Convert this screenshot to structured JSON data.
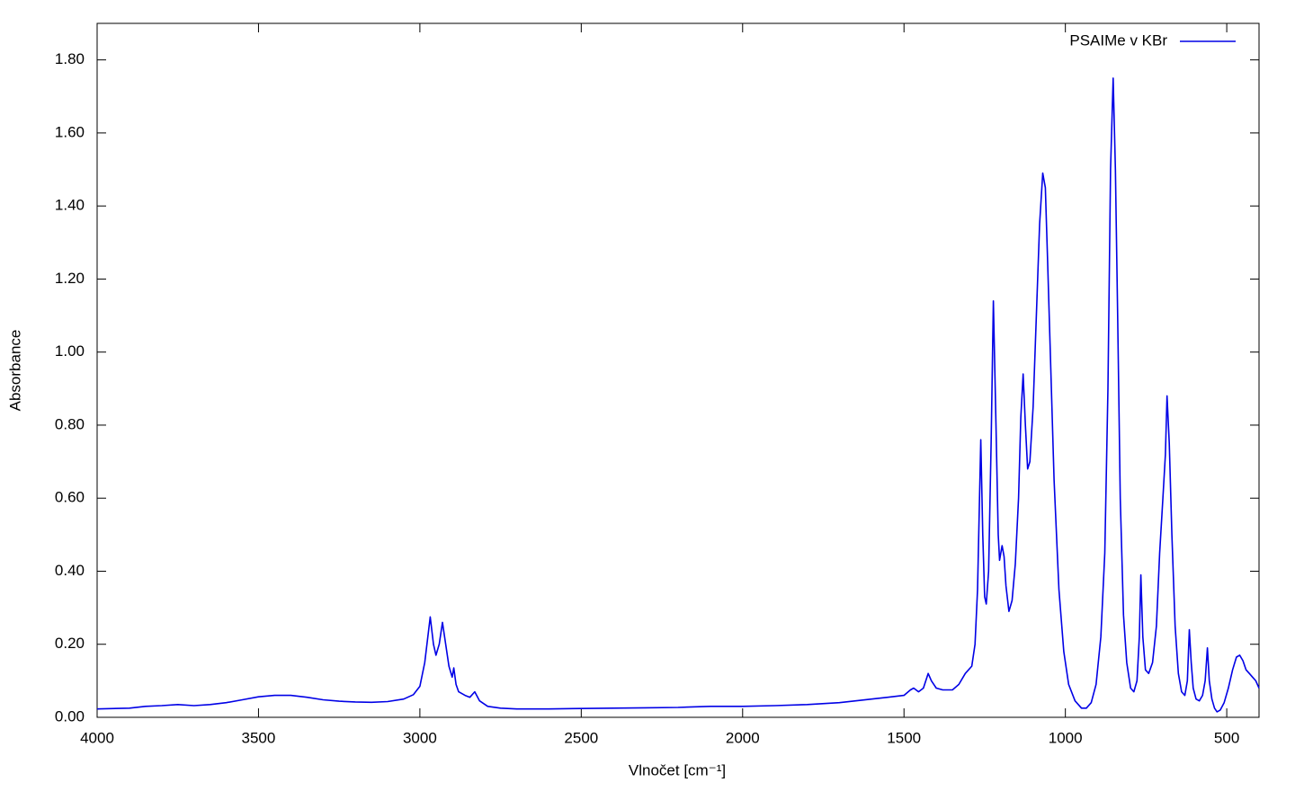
{
  "chart_data": {
    "type": "line",
    "x_label": "Vlnočet [cm⁻¹]",
    "y_label": "Absorbance",
    "xlim": [
      4000,
      400
    ],
    "ylim": [
      0,
      1.9
    ],
    "xticks": [
      4000,
      3500,
      3000,
      2500,
      2000,
      1500,
      1000,
      500
    ],
    "yticks": [
      {
        "value": 0,
        "label": "0.00"
      },
      {
        "value": 0.2,
        "label": "0.20"
      },
      {
        "value": 0.4,
        "label": "0.40"
      },
      {
        "value": 0.6,
        "label": "0.60"
      },
      {
        "value": 0.8,
        "label": "0.80"
      },
      {
        "value": 1.0,
        "label": "1.00"
      },
      {
        "value": 1.2,
        "label": "1.20"
      },
      {
        "value": 1.4,
        "label": "1.40"
      },
      {
        "value": 1.6,
        "label": "1.60"
      },
      {
        "value": 1.8,
        "label": "1.80"
      }
    ],
    "grid": false,
    "legend": "upper right",
    "x": [
      4000,
      3900,
      3850,
      3800,
      3750,
      3700,
      3650,
      3600,
      3550,
      3500,
      3450,
      3400,
      3350,
      3300,
      3250,
      3200,
      3150,
      3100,
      3050,
      3020,
      3000,
      2985,
      2968,
      2958,
      2950,
      2940,
      2930,
      2920,
      2910,
      2900,
      2895,
      2888,
      2880,
      2860,
      2845,
      2830,
      2815,
      2790,
      2750,
      2700,
      2600,
      2500,
      2400,
      2300,
      2200,
      2100,
      2000,
      1900,
      1800,
      1700,
      1650,
      1600,
      1550,
      1500,
      1480,
      1470,
      1455,
      1440,
      1425,
      1415,
      1400,
      1380,
      1350,
      1330,
      1310,
      1290,
      1280,
      1272,
      1266,
      1262,
      1256,
      1250,
      1245,
      1238,
      1230,
      1223,
      1215,
      1208,
      1204,
      1196,
      1190,
      1184,
      1175,
      1165,
      1155,
      1145,
      1138,
      1131,
      1124,
      1117,
      1110,
      1100,
      1090,
      1080,
      1070,
      1062,
      1055,
      1045,
      1035,
      1020,
      1005,
      990,
      970,
      950,
      935,
      920,
      905,
      890,
      878,
      868,
      860,
      852,
      845,
      838,
      830,
      820,
      810,
      798,
      788,
      778,
      771,
      766,
      760,
      752,
      742,
      730,
      718,
      708,
      698,
      690,
      685,
      678,
      670,
      660,
      650,
      640,
      630,
      622,
      616,
      610,
      604,
      595,
      585,
      575,
      567,
      560,
      554,
      546,
      538,
      530,
      520,
      508,
      495,
      482,
      470,
      460,
      450,
      440,
      430,
      420,
      410,
      400
    ],
    "series": [
      {
        "name": "PSAIMe v KBr",
        "color": "#0000e6",
        "values": [
          0.023,
          0.025,
          0.03,
          0.032,
          0.035,
          0.032,
          0.035,
          0.04,
          0.048,
          0.056,
          0.06,
          0.06,
          0.055,
          0.048,
          0.044,
          0.042,
          0.041,
          0.043,
          0.05,
          0.062,
          0.085,
          0.15,
          0.275,
          0.2,
          0.17,
          0.2,
          0.26,
          0.2,
          0.14,
          0.11,
          0.135,
          0.09,
          0.07,
          0.06,
          0.055,
          0.07,
          0.045,
          0.03,
          0.025,
          0.023,
          0.023,
          0.024,
          0.025,
          0.026,
          0.027,
          0.03,
          0.03,
          0.032,
          0.035,
          0.04,
          0.045,
          0.05,
          0.055,
          0.06,
          0.075,
          0.08,
          0.07,
          0.08,
          0.12,
          0.1,
          0.08,
          0.075,
          0.075,
          0.09,
          0.12,
          0.14,
          0.2,
          0.35,
          0.6,
          0.76,
          0.5,
          0.33,
          0.31,
          0.4,
          0.75,
          1.14,
          0.8,
          0.5,
          0.43,
          0.47,
          0.44,
          0.36,
          0.29,
          0.32,
          0.42,
          0.6,
          0.82,
          0.94,
          0.8,
          0.68,
          0.7,
          0.85,
          1.1,
          1.35,
          1.49,
          1.45,
          1.25,
          0.95,
          0.65,
          0.35,
          0.18,
          0.09,
          0.045,
          0.025,
          0.025,
          0.04,
          0.09,
          0.22,
          0.45,
          0.9,
          1.5,
          1.75,
          1.5,
          1.1,
          0.6,
          0.28,
          0.15,
          0.08,
          0.07,
          0.1,
          0.22,
          0.39,
          0.22,
          0.13,
          0.12,
          0.15,
          0.25,
          0.45,
          0.6,
          0.72,
          0.88,
          0.75,
          0.5,
          0.25,
          0.12,
          0.07,
          0.06,
          0.1,
          0.24,
          0.15,
          0.08,
          0.05,
          0.045,
          0.06,
          0.1,
          0.19,
          0.1,
          0.05,
          0.025,
          0.015,
          0.02,
          0.04,
          0.08,
          0.13,
          0.165,
          0.17,
          0.155,
          0.13,
          0.12,
          0.11,
          0.1,
          0.08
        ]
      }
    ]
  }
}
